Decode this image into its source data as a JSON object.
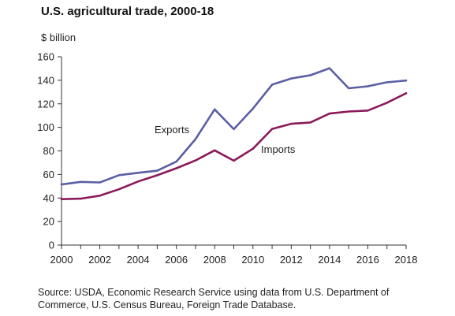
{
  "chart_data": {
    "type": "line",
    "title": "U.S. agricultural trade, 2000-18",
    "ylabel": "$ billion",
    "xlabel": "",
    "x": [
      2000,
      2001,
      2002,
      2003,
      2004,
      2005,
      2006,
      2007,
      2008,
      2009,
      2010,
      2011,
      2012,
      2013,
      2014,
      2015,
      2016,
      2017,
      2018
    ],
    "series": [
      {
        "name": "Exports",
        "color": "#5b5fa3",
        "values": [
          51.5,
          53.7,
          53.2,
          59.4,
          61.4,
          63.2,
          70.9,
          90.0,
          115.3,
          98.5,
          116.0,
          136.3,
          141.5,
          144.3,
          150.2,
          133.2,
          134.9,
          138.3,
          139.8
        ]
      },
      {
        "name": "Imports",
        "color": "#8b1a5a",
        "values": [
          39.0,
          39.4,
          42.0,
          47.4,
          54.0,
          59.3,
          65.3,
          71.9,
          80.5,
          71.7,
          81.9,
          98.7,
          103.0,
          104.2,
          111.7,
          113.5,
          114.3,
          120.9,
          129.0
        ]
      }
    ],
    "xlim": [
      2000,
      2018
    ],
    "ylim": [
      0,
      160
    ],
    "x_ticks": [
      "2000",
      "2002",
      "2004",
      "2006",
      "2008",
      "2010",
      "2012",
      "2014",
      "2016",
      "2018"
    ],
    "y_ticks": [
      "0",
      "20",
      "40",
      "60",
      "80",
      "100",
      "120",
      "140",
      "160"
    ],
    "grid": false,
    "annotations": [
      "Exports",
      "Imports"
    ]
  },
  "source_line1": "Source: USDA, Economic Research Service using data from U.S. Department of",
  "source_line2": "Commerce, U.S. Census Bureau, Foreign Trade Database."
}
